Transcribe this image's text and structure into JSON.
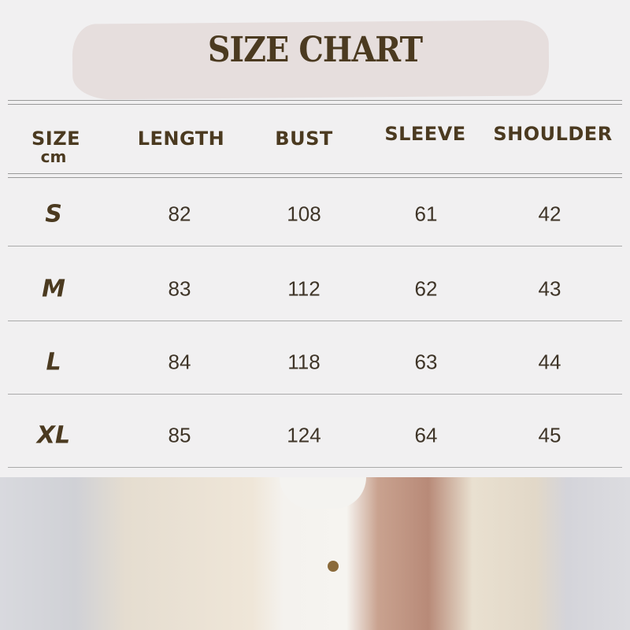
{
  "title": "SIZE CHART",
  "headers": {
    "size": "SIZE",
    "unit": "cm",
    "length": "LENGTH",
    "bust": "BUST",
    "sleeve": "SLEEVE",
    "shoulder": "SHOULDER"
  },
  "rows": [
    {
      "size": "S",
      "length": "82",
      "bust": "108",
      "sleeve": "61",
      "shoulder": "42"
    },
    {
      "size": "M",
      "length": "83",
      "bust": "112",
      "sleeve": "62",
      "shoulder": "43"
    },
    {
      "size": "L",
      "length": "84",
      "bust": "118",
      "sleeve": "63",
      "shoulder": "44"
    },
    {
      "size": "XL",
      "length": "85",
      "bust": "124",
      "sleeve": "64",
      "shoulder": "45"
    }
  ],
  "colors": {
    "text": "#4b3a20",
    "banner": "#e6dedd",
    "background": "#f1f0f1"
  }
}
